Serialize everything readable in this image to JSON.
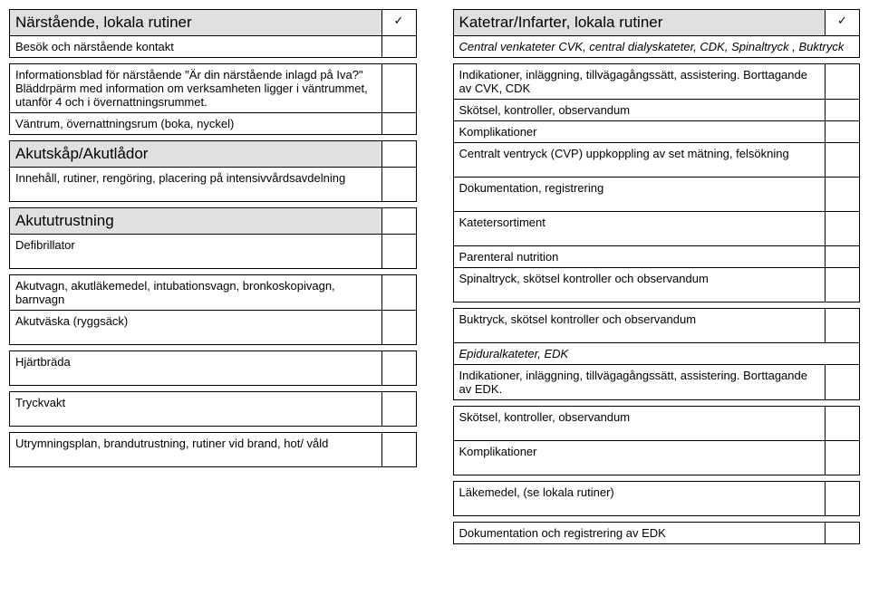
{
  "left": {
    "section1": {
      "title": "Närstående, lokala rutiner",
      "check": "✓",
      "rows": [
        {
          "text": "Besök och närstående kontakt",
          "check": "",
          "tall": false
        },
        {
          "text": "Informationsblad för närstående \"Är din närstående inlagd på Iva?\" Bläddrpärm med information om verksamheten ligger i väntrummet, utanför 4 och i övernattningsrummet.",
          "check": "",
          "tall": true
        },
        {
          "text": "Väntrum, övernattningsrum (boka, nyckel)",
          "check": "",
          "tall": false
        }
      ]
    },
    "section2": {
      "title": "Akutskåp/Akutlådor",
      "check": "",
      "rows": [
        {
          "text": "Innehåll, rutiner, rengöring, placering på intensivvårdsavdelning",
          "check": "",
          "tall": false
        }
      ]
    },
    "section3": {
      "title": "Akututrustning",
      "check": "",
      "rows": [
        {
          "text": "Defibrillator",
          "check": ""
        },
        {
          "text": "Akutvagn, akutläkemedel, intubationsvagn, bronkoskopivagn, barnvagn",
          "check": ""
        },
        {
          "text": "Akutväska (ryggsäck)",
          "check": ""
        },
        {
          "text": "Hjärtbräda",
          "check": ""
        },
        {
          "text": "Tryckvakt",
          "check": ""
        },
        {
          "text": "Utrymningsplan, brandutrustning, rutiner vid brand, hot/ våld",
          "check": ""
        }
      ]
    }
  },
  "right": {
    "section1": {
      "title": "Katetrar/Infarter, lokala rutiner",
      "check": "✓",
      "subheader": "Central venkateter CVK, central dialyskateter, CDK, Spinaltryck , Buktryck",
      "rows": [
        {
          "text": "Indikationer, inläggning, tillvägagångssätt, assistering. Borttagande av CVK, CDK",
          "check": ""
        },
        {
          "text": "Skötsel, kontroller, observandum",
          "check": ""
        },
        {
          "text": "Komplikationer",
          "check": ""
        },
        {
          "text": "Centralt ventryck (CVP) uppkoppling av set mätning, felsökning",
          "check": ""
        },
        {
          "text": "Dokumentation, registrering",
          "check": ""
        },
        {
          "text": "Katetersortiment",
          "check": ""
        },
        {
          "text": "Parenteral nutrition",
          "check": ""
        },
        {
          "text": "Spinaltryck, skötsel kontroller och observandum",
          "check": ""
        },
        {
          "text": "Buktryck, skötsel kontroller och observandum",
          "check": ""
        }
      ],
      "subheader2": "Epiduralkateter, EDK",
      "rows2": [
        {
          "text": "Indikationer, inläggning, tillvägagångssätt, assistering. Borttagande av EDK.",
          "check": ""
        },
        {
          "text": "Skötsel, kontroller, observandum",
          "check": ""
        },
        {
          "text": "Komplikationer",
          "check": ""
        },
        {
          "text": "Läkemedel, (se lokala rutiner)",
          "check": ""
        },
        {
          "text": "Dokumentation och registrering av EDK",
          "check": ""
        }
      ]
    }
  }
}
